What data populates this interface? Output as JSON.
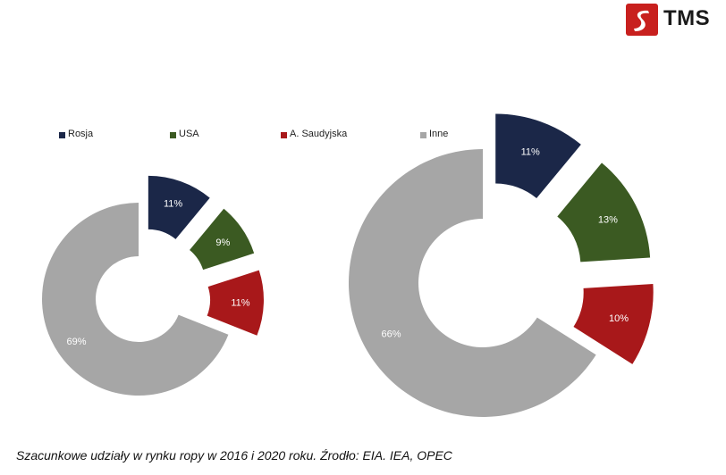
{
  "logo": {
    "text": "TMS",
    "icon": "tms-logo-icon",
    "mark_color": "#c8201e",
    "text_color": "#1a1a1a"
  },
  "legend": [
    {
      "name": "Rosja",
      "color": "#1b2748"
    },
    {
      "name": "USA",
      "color": "#3b5a22"
    },
    {
      "name": "A. Saudyjska",
      "color": "#a8181a"
    },
    {
      "name": "Inne",
      "color": "#a6a6a6"
    }
  ],
  "chart_data": [
    {
      "type": "pie",
      "variant": "exploded-donut",
      "labels": [
        "Rosja",
        "USA",
        "A. Saudyjska",
        "Inne"
      ],
      "values": [
        11,
        9,
        11,
        69
      ],
      "data_labels": [
        "11%",
        "9%",
        "11%",
        "69%"
      ],
      "legend": "top"
    },
    {
      "type": "pie",
      "variant": "exploded-donut",
      "labels": [
        "Rosja",
        "USA",
        "A. Saudyjska",
        "Inne"
      ],
      "values": [
        11,
        13,
        10,
        66
      ],
      "data_labels": [
        "11%",
        "13%",
        "10%",
        "66%"
      ],
      "legend": "top"
    }
  ],
  "caption": "Szacunkowe udziały w rynku ropy w 2016 i 2020 roku. Źrodło: EIA. IEA, OPEC"
}
